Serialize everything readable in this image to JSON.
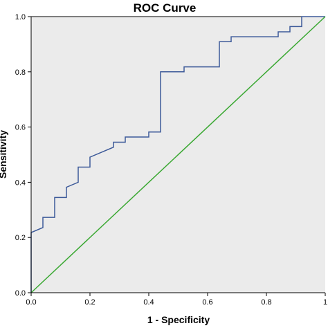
{
  "chart_data": {
    "type": "line",
    "title": "ROC Curve",
    "xlabel": "1 - Specificity",
    "ylabel": "Sensitivity",
    "xlim": [
      0,
      1
    ],
    "ylim": [
      0,
      1
    ],
    "x_ticks": [
      "0.0",
      "0.2",
      "0.4",
      "0.6",
      "0.8",
      "1"
    ],
    "y_ticks": [
      "0.0",
      "0.2",
      "0.4",
      "0.6",
      "0.8",
      "1.0"
    ],
    "grid": false,
    "background_color": "#ebebeb",
    "series": [
      {
        "color": "#3d5a99",
        "step": true,
        "x": [
          0,
          0,
          0.04,
          0.04,
          0.08,
          0.08,
          0.12,
          0.12,
          0.16,
          0.16,
          0.2,
          0.2,
          0.28,
          0.28,
          0.32,
          0.32,
          0.4,
          0.4,
          0.44,
          0.44,
          0.52,
          0.52,
          0.64,
          0.64,
          0.68,
          0.68,
          0.84,
          0.84,
          0.88,
          0.88,
          0.92,
          0.92,
          1.0
        ],
        "y": [
          0,
          0.218,
          0.236,
          0.273,
          0.273,
          0.345,
          0.345,
          0.382,
          0.4,
          0.455,
          0.455,
          0.491,
          0.527,
          0.545,
          0.545,
          0.564,
          0.564,
          0.582,
          0.582,
          0.8,
          0.8,
          0.818,
          0.818,
          0.909,
          0.909,
          0.927,
          0.927,
          0.945,
          0.945,
          0.964,
          0.964,
          1.0,
          1.0
        ]
      },
      {
        "color": "#3aa832",
        "x": [
          0,
          1
        ],
        "y": [
          0,
          1
        ]
      }
    ]
  }
}
